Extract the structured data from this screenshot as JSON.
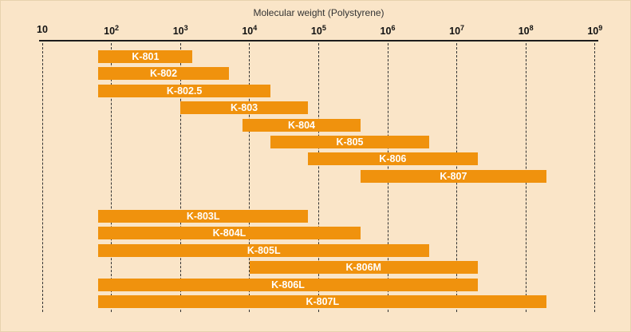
{
  "chart_data": {
    "type": "bar",
    "subtype": "horizontal-range-bars",
    "scale": "log10",
    "title": "Molecular weight (Polystyrene)",
    "xlabel": "Molecular weight (Polystyrene)",
    "ylabel": "",
    "grid": "dashed-vertical",
    "legend_position": "none",
    "axis": {
      "tick_base": "10",
      "tick_exponents": [
        1,
        2,
        3,
        4,
        5,
        6,
        7,
        8,
        9
      ],
      "xlim_exponents": [
        1,
        9
      ]
    },
    "columns": [
      {
        "label": "K-801",
        "group": 1,
        "mw_min": 65,
        "mw_max": 1500
      },
      {
        "label": "K-802",
        "group": 1,
        "mw_min": 65,
        "mw_max": 5000
      },
      {
        "label": "K-802.5",
        "group": 1,
        "mw_min": 65,
        "mw_max": 20000
      },
      {
        "label": "K-803",
        "group": 1,
        "mw_min": 1000,
        "mw_max": 70000
      },
      {
        "label": "K-804",
        "group": 1,
        "mw_min": 8000,
        "mw_max": 400000
      },
      {
        "label": "K-805",
        "group": 1,
        "mw_min": 20000,
        "mw_max": 4000000
      },
      {
        "label": "K-806",
        "group": 1,
        "mw_min": 70000,
        "mw_max": 20000000
      },
      {
        "label": "K-807",
        "group": 1,
        "mw_min": 400000,
        "mw_max": 200000000
      },
      {
        "label": "K-803L",
        "group": 2,
        "mw_min": 65,
        "mw_max": 70000
      },
      {
        "label": "K-804L",
        "group": 2,
        "mw_min": 65,
        "mw_max": 400000
      },
      {
        "label": "K-805L",
        "group": 2,
        "mw_min": 65,
        "mw_max": 4000000
      },
      {
        "label": "K-806M",
        "group": 2,
        "mw_min": 10000,
        "mw_max": 20000000
      },
      {
        "label": "K-806L",
        "group": 2,
        "mw_min": 65,
        "mw_max": 20000000
      },
      {
        "label": "K-807L",
        "group": 2,
        "mw_min": 65,
        "mw_max": 200000000
      }
    ],
    "colors": {
      "background": "#FAE5C8",
      "bar": "#F0920D",
      "bar_label": "#FFFFFF",
      "axis_text": "#111111",
      "title_text": "#333333",
      "gridline": "#333333",
      "axis_line": "#1C1C1C"
    }
  }
}
